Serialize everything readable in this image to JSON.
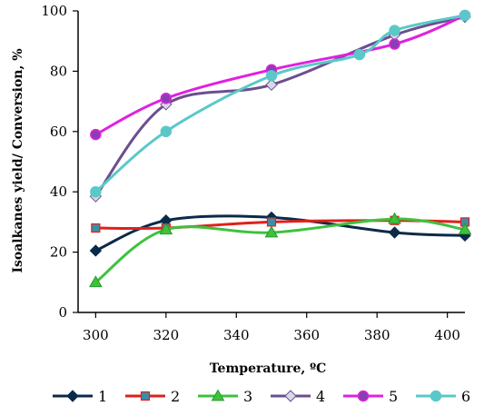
{
  "chart_data": {
    "type": "line",
    "title": "",
    "xlabel": "Temperature, ºC",
    "ylabel": "Isoalkanes yield/ Conversion, %",
    "xlim": [
      295,
      405
    ],
    "ylim": [
      0,
      100
    ],
    "xticks": [
      300,
      320,
      340,
      360,
      380,
      400
    ],
    "yticks": [
      0,
      20,
      40,
      60,
      80,
      100
    ],
    "grid": false,
    "legend_position": "bottom",
    "series": [
      {
        "name": "1",
        "color": "#0b2a4a",
        "marker": "diamond",
        "x": [
          300,
          320,
          350,
          385,
          405
        ],
        "y": [
          20.5,
          30.5,
          31.5,
          26.5,
          25.5
        ]
      },
      {
        "name": "2",
        "color": "#e0201b",
        "marker": "square",
        "x": [
          300,
          320,
          350,
          385,
          405
        ],
        "y": [
          28,
          28,
          30,
          30.5,
          30
        ]
      },
      {
        "name": "3",
        "color": "#3dc23d",
        "marker": "triangle",
        "x": [
          300,
          320,
          350,
          385,
          405
        ],
        "y": [
          10,
          27.5,
          26.5,
          31,
          27.5
        ]
      },
      {
        "name": "4",
        "color": "#6b4f8f",
        "marker": "diamond",
        "x": [
          300,
          320,
          350,
          385,
          405
        ],
        "y": [
          38.5,
          69,
          75.5,
          92,
          98
        ]
      },
      {
        "name": "5",
        "color": "#e020e0",
        "marker": "circle",
        "x": [
          300,
          320,
          350,
          385,
          405
        ],
        "y": [
          59,
          71,
          80.5,
          89,
          98.5
        ]
      },
      {
        "name": "6",
        "color": "#5bc8c8",
        "marker": "circle",
        "x": [
          300,
          320,
          350,
          375,
          385,
          405
        ],
        "y": [
          40,
          60,
          78.5,
          85.5,
          93.5,
          98.5
        ]
      }
    ]
  }
}
